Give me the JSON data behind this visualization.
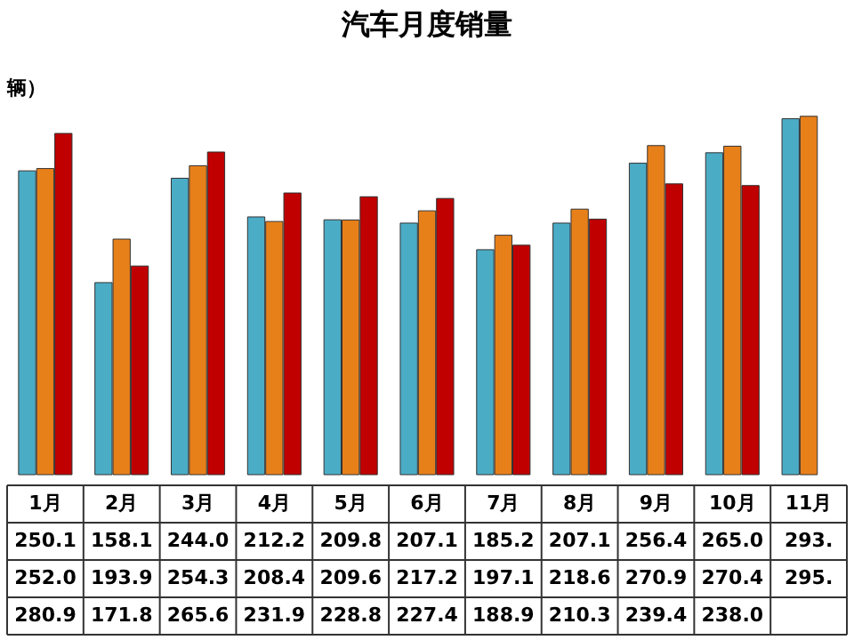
{
  "chart_data": {
    "type": "bar",
    "title": "汽车月度销量",
    "ylabel": "辆）",
    "categories": [
      "1月",
      "2月",
      "3月",
      "4月",
      "5月",
      "6月",
      "7月",
      "8月",
      "9月",
      "10月",
      "11月"
    ],
    "ylim": [
      0,
      300
    ],
    "series": [
      {
        "color": "#4bacc6",
        "values": [
          250.1,
          158.1,
          244.0,
          212.2,
          209.8,
          207.1,
          185.2,
          207.1,
          256.4,
          265.0,
          293
        ],
        "value_labels": [
          "250.1",
          "158.1",
          "244.0",
          "212.2",
          "209.8",
          "207.1",
          "185.2",
          "207.1",
          "256.4",
          "265.0",
          "293."
        ]
      },
      {
        "color": "#e8801a",
        "values": [
          252.0,
          193.9,
          254.3,
          208.4,
          209.6,
          217.2,
          197.1,
          218.6,
          270.9,
          270.4,
          295
        ],
        "value_labels": [
          "252.0",
          "193.9",
          "254.3",
          "208.4",
          "209.6",
          "217.2",
          "197.1",
          "218.6",
          "270.9",
          "270.4",
          "295."
        ]
      },
      {
        "color": "#c00000",
        "values": [
          280.9,
          171.8,
          265.6,
          231.9,
          228.8,
          227.4,
          188.9,
          210.3,
          239.4,
          238.0,
          null
        ],
        "value_labels": [
          "280.9",
          "171.8",
          "265.6",
          "231.9",
          "228.8",
          "227.4",
          "188.9",
          "210.3",
          "239.4",
          "238.0",
          null
        ]
      }
    ]
  }
}
